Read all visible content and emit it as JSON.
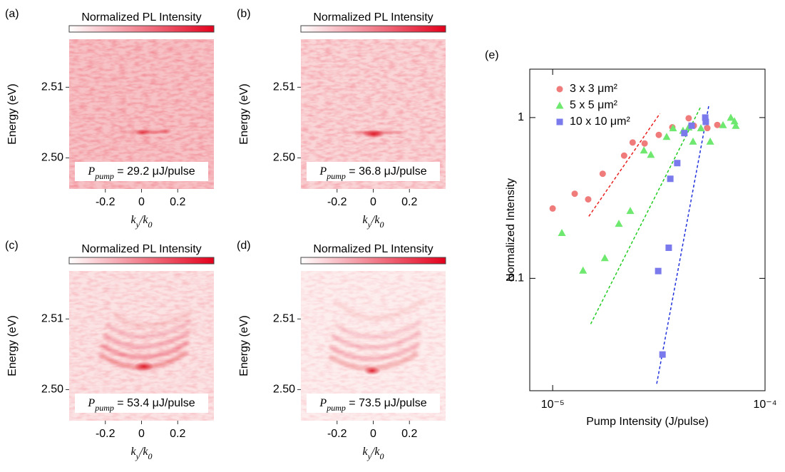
{
  "chart_data": [
    {
      "type": "image",
      "panel_label": "(a)",
      "colorbar_label": "Normalized PL Intensity",
      "xlabel": [
        "k",
        "y",
        "/k",
        "0"
      ],
      "ylabel": "Energy (eV)",
      "xlim": [
        -0.4,
        0.4
      ],
      "xticks": [
        -0.2,
        0,
        0.2
      ],
      "ylim": [
        2.4956,
        2.5168
      ],
      "yticks": [
        {
          "value": 2.5,
          "label": "2.50"
        },
        2.51
      ],
      "annotation": [
        "P",
        "pump",
        " = 29.2 μJ/pulse"
      ]
    },
    {
      "type": "image",
      "panel_label": "(b)",
      "colorbar_label": "Normalized PL Intensity",
      "xlabel": [
        "k",
        "y",
        "/k",
        "0"
      ],
      "ylabel": "Energy (eV)",
      "xlim": [
        -0.4,
        0.4
      ],
      "xticks": [
        -0.2,
        0,
        0.2
      ],
      "ylim": [
        2.4956,
        2.5168
      ],
      "yticks": [
        {
          "value": 2.5,
          "label": "2.50"
        },
        2.51
      ],
      "annotation": [
        "P",
        "pump",
        " = 36.8 μJ/pulse"
      ]
    },
    {
      "type": "image",
      "panel_label": "(c)",
      "colorbar_label": "Normalized PL Intensity",
      "xlabel": [
        "k",
        "y",
        "/k",
        "0"
      ],
      "ylabel": "Energy (eV)",
      "xlim": [
        -0.4,
        0.4
      ],
      "xticks": [
        -0.2,
        0,
        0.2
      ],
      "ylim": [
        2.4956,
        2.5168
      ],
      "yticks": [
        {
          "value": 2.5,
          "label": "2.50"
        },
        2.51
      ],
      "annotation": [
        "P",
        "pump",
        " = 53.4 μJ/pulse"
      ]
    },
    {
      "type": "image",
      "panel_label": "(d)",
      "colorbar_label": "Normalized PL Intensity",
      "xlabel": [
        "k",
        "y",
        "/k",
        "0"
      ],
      "ylabel": "Energy (eV)",
      "xlim": [
        -0.4,
        0.4
      ],
      "xticks": [
        -0.2,
        0,
        0.2
      ],
      "ylim": [
        2.4956,
        2.5168
      ],
      "yticks": [
        {
          "value": 2.5,
          "label": "2.50"
        },
        2.51
      ],
      "annotation": [
        "P",
        "pump",
        " = 73.5 μJ/pulse"
      ]
    },
    {
      "type": "scatter",
      "panel_label": "(e)",
      "xlabel": "Pump Intensity (J/pulse)",
      "ylabel": "Normalized Intensity",
      "xscale": "log",
      "yscale": "log",
      "xlim": [
        7.8e-06,
        0.0001
      ],
      "ylim": [
        0.02,
        2
      ],
      "xticks": [
        {
          "value": 1e-05,
          "label": "10⁻⁵"
        },
        {
          "value": 0.0001,
          "label": "10⁻⁴"
        }
      ],
      "yticks": [
        0.1,
        1
      ],
      "legend": "upper left",
      "series": [
        {
          "name": "3 x 3 μm²",
          "color": "#f07b7b",
          "marker": "circle",
          "x": [
            1e-05,
            1.27e-05,
            1.47e-05,
            1.72e-05,
            2.17e-05,
            2.38e-05,
            2.71e-05,
            3.16e-05,
            3.66e-05,
            4.37e-05,
            4.62e-05,
            5.35e-05,
            5.96e-05
          ],
          "values": [
            0.272,
            0.336,
            0.31,
            0.447,
            0.58,
            0.7,
            0.69,
            0.78,
            0.87,
            0.99,
            0.89,
            0.86,
            0.9
          ]
        },
        {
          "name": "5 x 5 μm²",
          "color": "#6ee86e",
          "marker": "triangle",
          "x": [
            1.105e-05,
            1.39e-05,
            1.76e-05,
            2.05e-05,
            2.32e-05,
            2.69e-05,
            2.9e-05,
            3.44e-05,
            3.69e-05,
            4.11e-05,
            4.37e-05,
            4.58e-05,
            4.99e-05,
            5.52e-05,
            6.34e-05,
            6.9e-05,
            7.18e-05,
            7.28e-05
          ],
          "values": [
            0.192,
            0.112,
            0.134,
            0.219,
            0.263,
            0.626,
            0.588,
            0.76,
            0.86,
            0.83,
            0.87,
            0.71,
            0.86,
            0.71,
            0.9,
            1.0,
            0.95,
            0.89
          ]
        },
        {
          "name": "10 x 10 μm²",
          "color": "#7a7aec",
          "marker": "square",
          "x": [
            3.14e-05,
            3.29e-05,
            3.52e-05,
            3.58e-05,
            3.86e-05,
            4.17e-05,
            4.51e-05,
            5.23e-05,
            5.26e-05
          ],
          "values": [
            0.111,
            0.0336,
            0.155,
            0.416,
            0.521,
            0.8,
            0.89,
            1.0,
            0.94
          ]
        }
      ],
      "fit_lines": [
        {
          "color": "#e82020",
          "x": [
            1.48e-05,
            3.2e-05
          ],
          "values": [
            0.243,
            1.06
          ]
        },
        {
          "color": "#22cc22",
          "x": [
            1.51e-05,
            5e-05
          ],
          "values": [
            0.052,
            1.18
          ]
        },
        {
          "color": "#2233dd",
          "x": [
            3.09e-05,
            5.43e-05
          ],
          "values": [
            0.0221,
            1.18
          ]
        }
      ]
    }
  ]
}
